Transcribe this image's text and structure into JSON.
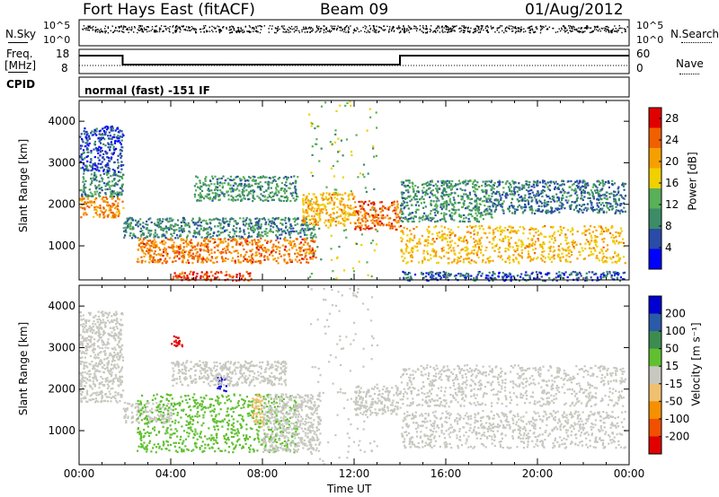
{
  "header": {
    "station": "Fort Hays East (fitACF)",
    "beam": "Beam 09",
    "date": "01/Aug/2012"
  },
  "strip_panels": {
    "nsky_label": "N.Sky",
    "nsearch_label": "N.Search",
    "noise_ticks": [
      "10^5",
      "10^0"
    ],
    "freq_label_line1": "Freq.",
    "freq_label_line2": "[MHz]",
    "freq_ticks": [
      "18",
      "8"
    ],
    "nave_label": "Nave",
    "nave_ticks": [
      "60",
      "0"
    ],
    "cpid_label": "CPID",
    "cpid_value": "normal (fast) -151 IF"
  },
  "chart_data": [
    {
      "type": "heatmap",
      "name": "power",
      "ylabel": "Slant Range [km]",
      "ylim": [
        180,
        4500
      ],
      "xlim": [
        0,
        24
      ],
      "x_ticks": [
        "00:00",
        "04:00",
        "08:00",
        "12:00",
        "16:00",
        "20:00",
        "00:00"
      ],
      "y_ticks": [
        1000,
        2000,
        3000,
        4000
      ],
      "colorbar": {
        "label": "Power [dB]",
        "ticks": [
          4,
          8,
          12,
          16,
          20,
          24,
          28
        ],
        "range": [
          0,
          30
        ],
        "colors": [
          "#0000ff",
          "#2a4ba8",
          "#3c8c68",
          "#58b058",
          "#f0d000",
          "#f5a000",
          "#f06000",
          "#e00000"
        ]
      },
      "regions": [
        {
          "t": [
            0.0,
            1.9
          ],
          "r": [
            1700,
            2200
          ],
          "value": 22
        },
        {
          "t": [
            0.0,
            1.9
          ],
          "r": [
            2200,
            2800
          ],
          "value": 10
        },
        {
          "t": [
            0.0,
            1.9
          ],
          "r": [
            2800,
            3900
          ],
          "value": 5
        },
        {
          "t": [
            1.9,
            10.3
          ],
          "r": [
            1200,
            1700
          ],
          "value": 9
        },
        {
          "t": [
            2.5,
            10.3
          ],
          "r": [
            600,
            1200
          ],
          "value": 23
        },
        {
          "t": [
            4.0,
            7.5
          ],
          "r": [
            180,
            400
          ],
          "value": 26
        },
        {
          "t": [
            5.0,
            9.5
          ],
          "r": [
            2100,
            2700
          ],
          "value": 10
        },
        {
          "t": [
            10.0,
            13.0
          ],
          "r": [
            180,
            4500
          ],
          "value": 14
        },
        {
          "t": [
            9.7,
            12.0
          ],
          "r": [
            1500,
            2300
          ],
          "value": 19
        },
        {
          "t": [
            12.0,
            14.0
          ],
          "r": [
            1400,
            2100
          ],
          "value": 24
        },
        {
          "t": [
            14.0,
            23.8
          ],
          "r": [
            600,
            1500
          ],
          "value": 19
        },
        {
          "t": [
            14.0,
            18.0
          ],
          "r": [
            1600,
            2600
          ],
          "value": 10
        },
        {
          "t": [
            18.0,
            23.8
          ],
          "r": [
            1800,
            2600
          ],
          "value": 8
        },
        {
          "t": [
            14.0,
            23.8
          ],
          "r": [
            180,
            400
          ],
          "value": 6
        }
      ]
    },
    {
      "type": "heatmap",
      "name": "velocity",
      "ylabel": "Slant Range [km]",
      "ylim": [
        180,
        4500
      ],
      "xlim": [
        0,
        24
      ],
      "xlabel": "Time UT",
      "x_ticks": [
        "00:00",
        "04:00",
        "08:00",
        "12:00",
        "16:00",
        "20:00",
        "00:00"
      ],
      "y_ticks": [
        1000,
        2000,
        3000,
        4000
      ],
      "colorbar": {
        "label": "Velocity [m s⁻¹]",
        "ticks": [
          "200",
          "100",
          "50",
          "15",
          "-15",
          "-50",
          "-100",
          "-200"
        ],
        "range": [
          -250,
          250
        ],
        "colors": [
          "#e00000",
          "#f05000",
          "#f59000",
          "#f0c070",
          "#c8c8c0",
          "#60c030",
          "#3c8c50",
          "#2a5aa8",
          "#0000d0"
        ]
      },
      "regions": [
        {
          "t": [
            0.0,
            1.9
          ],
          "r": [
            1700,
            2300
          ],
          "value": 0
        },
        {
          "t": [
            0.0,
            1.9
          ],
          "r": [
            2300,
            3900
          ],
          "value": 5
        },
        {
          "t": [
            1.9,
            4.0
          ],
          "r": [
            1200,
            1700
          ],
          "value": 0
        },
        {
          "t": [
            2.5,
            9.5
          ],
          "r": [
            500,
            1900
          ],
          "value": 45
        },
        {
          "t": [
            8.0,
            10.5
          ],
          "r": [
            500,
            1900
          ],
          "value": 0
        },
        {
          "t": [
            6.0,
            6.4
          ],
          "r": [
            1950,
            2300
          ],
          "value": 220
        },
        {
          "t": [
            4.0,
            9.0
          ],
          "r": [
            2100,
            2700
          ],
          "value": 0
        },
        {
          "t": [
            10.0,
            13.0
          ],
          "r": [
            180,
            4500
          ],
          "value": 0
        },
        {
          "t": [
            12.0,
            14.0
          ],
          "r": [
            1400,
            2100
          ],
          "value": 0
        },
        {
          "t": [
            14.0,
            23.8
          ],
          "r": [
            600,
            1500
          ],
          "value": 0
        },
        {
          "t": [
            14.0,
            23.8
          ],
          "r": [
            1600,
            2600
          ],
          "value": 0
        },
        {
          "t": [
            7.5,
            8.0
          ],
          "r": [
            1100,
            1900
          ],
          "value": -60
        },
        {
          "t": [
            4.0,
            4.5
          ],
          "r": [
            3000,
            3300
          ],
          "value": -220
        }
      ]
    }
  ]
}
